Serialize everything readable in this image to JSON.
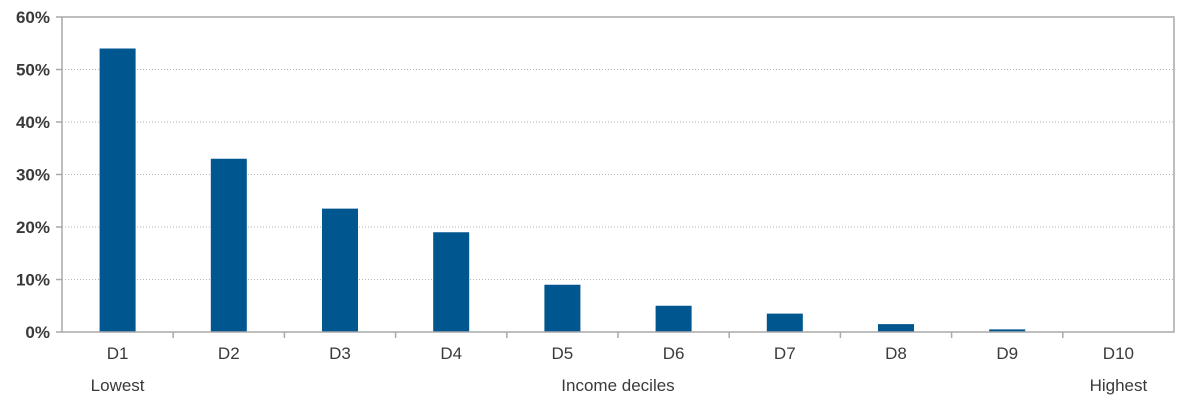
{
  "chart_data": {
    "type": "bar",
    "categories": [
      "D1",
      "D2",
      "D3",
      "D4",
      "D5",
      "D6",
      "D7",
      "D8",
      "D9",
      "D10"
    ],
    "values": [
      54,
      33,
      23.5,
      19,
      9,
      5,
      3.5,
      1.5,
      0.5,
      0
    ],
    "xlabel": "Income deciles",
    "x_end_labels": {
      "left": "Lowest",
      "right": "Highest"
    },
    "ylabel": "",
    "ylim": [
      0,
      60
    ],
    "y_ticks": [
      0,
      10,
      20,
      30,
      40,
      50,
      60
    ],
    "y_tick_labels": [
      "0%",
      "10%",
      "20%",
      "30%",
      "40%",
      "50%",
      "60%"
    ],
    "grid": true,
    "legend": "none",
    "bar_color": "#00568f"
  }
}
